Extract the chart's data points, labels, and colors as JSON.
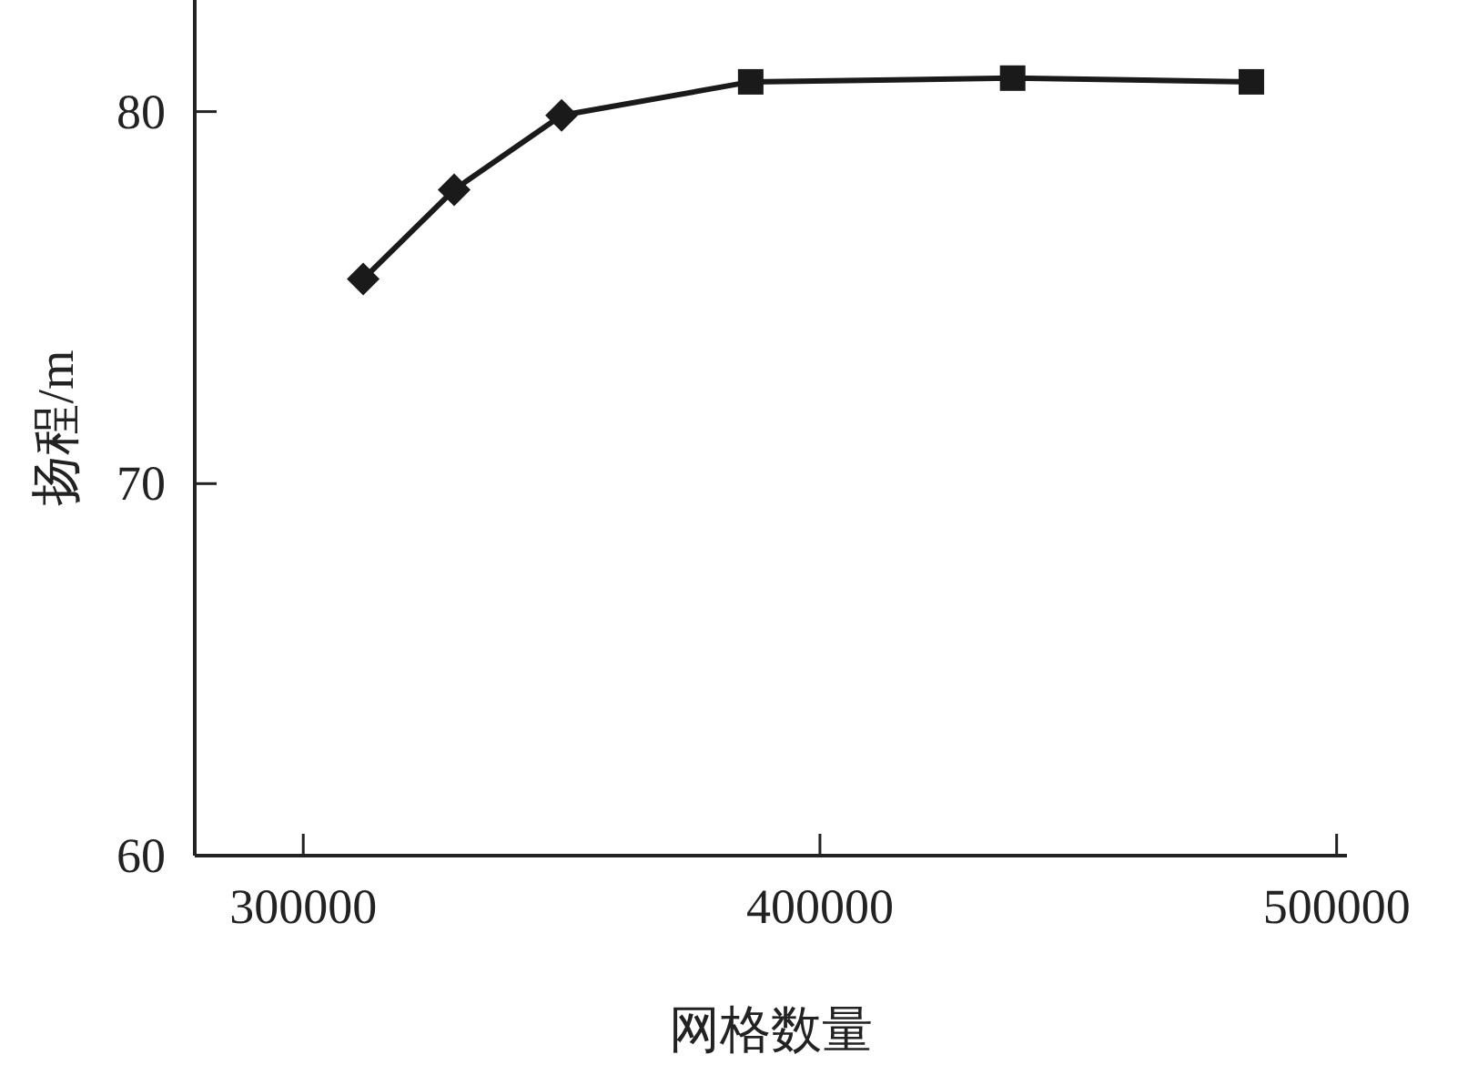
{
  "chart_data": {
    "type": "line",
    "xlabel": "网格数量",
    "ylabel": "扬程/m",
    "xlim": [
      279000,
      502000
    ],
    "ylim": [
      60,
      83
    ],
    "xticks": [
      300000,
      400000,
      500000
    ],
    "yticks": [
      60,
      70,
      80
    ],
    "grid": false,
    "line_style": "solid",
    "series": [
      {
        "marker": "none",
        "color": "#1a1a1a",
        "x": [
          311600,
          329200,
          350000,
          386600,
          437300,
          483500
        ],
        "values": [
          75.5,
          77.9,
          79.9,
          80.8,
          80.9,
          80.8
        ]
      },
      {
        "type": "scatter",
        "marker": "diamond",
        "color": "#1a1a1a",
        "x": [
          311600,
          329200,
          350000
        ],
        "values": [
          75.5,
          77.9,
          79.9
        ]
      },
      {
        "type": "scatter",
        "marker": "square",
        "color": "#1a1a1a",
        "x": [
          386600,
          437300,
          483500
        ],
        "values": [
          80.8,
          80.9,
          80.8
        ]
      }
    ]
  }
}
